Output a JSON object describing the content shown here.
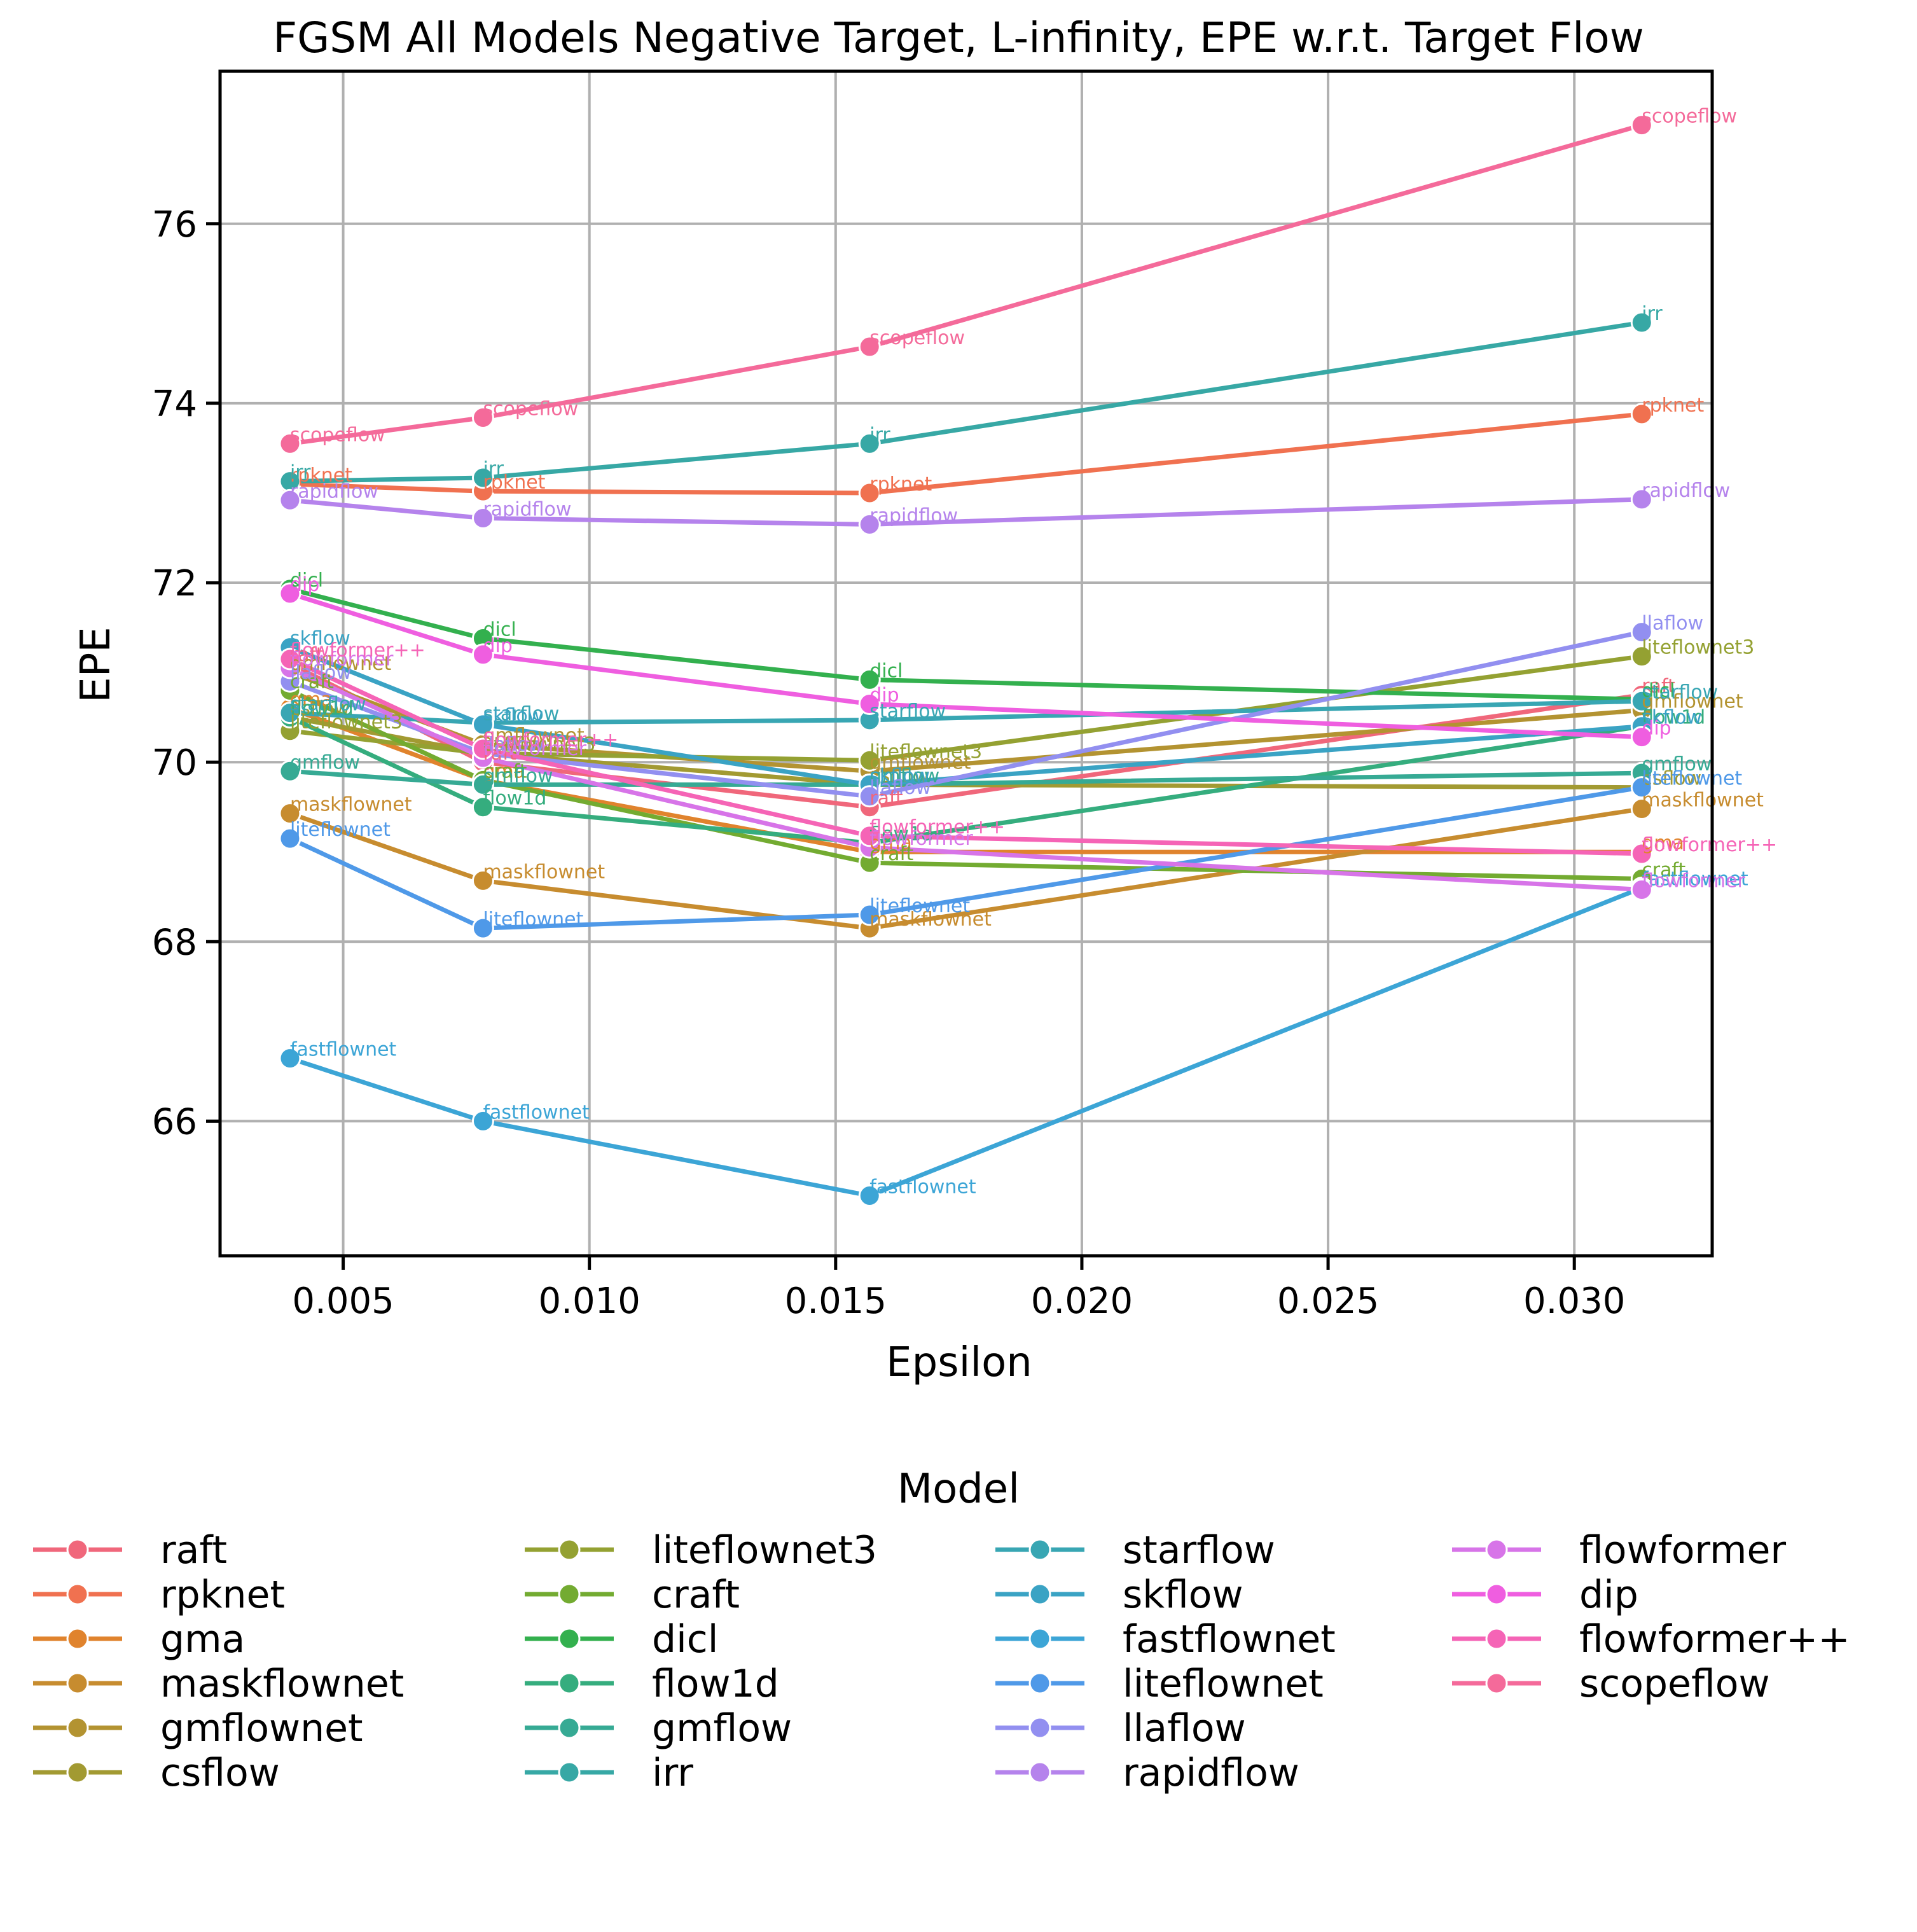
{
  "chart_data": {
    "type": "line",
    "title": "FGSM All Models Negative Target, L-infinity, EPE w.r.t. Target Flow",
    "xlabel": "Epsilon",
    "ylabel": "EPE",
    "x": [
      0.00392,
      0.00784,
      0.01569,
      0.03137
    ],
    "xlim": [
      0.0025,
      0.0328
    ],
    "ylim": [
      64.5,
      77.7
    ],
    "xticks": [
      0.005,
      0.01,
      0.015,
      0.02,
      0.025,
      0.03
    ],
    "xtick_labels": [
      "0.005",
      "0.010",
      "0.015",
      "0.020",
      "0.025",
      "0.030"
    ],
    "yticks": [
      66,
      68,
      70,
      72,
      74,
      76
    ],
    "ytick_labels": [
      "66",
      "68",
      "70",
      "72",
      "74",
      "76"
    ],
    "grid": true,
    "legend_title": "Model",
    "legend_position": "below",
    "series": [
      {
        "name": "raft",
        "color": "#f0677b",
        "values": [
          71.1,
          70.0,
          69.5,
          70.75
        ]
      },
      {
        "name": "rpknet",
        "color": "#f07150",
        "values": [
          73.1,
          73.02,
          73.0,
          73.88
        ]
      },
      {
        "name": "gma",
        "color": "#e0832d",
        "values": [
          70.6,
          69.8,
          69.0,
          69.0
        ]
      },
      {
        "name": "maskflownet",
        "color": "#c78c2f",
        "values": [
          69.43,
          68.68,
          68.15,
          69.48
        ]
      },
      {
        "name": "gmflownet",
        "color": "#b39331",
        "values": [
          71.0,
          70.2,
          69.9,
          70.58
        ]
      },
      {
        "name": "csflow",
        "color": "#a29a32",
        "values": [
          70.5,
          70.1,
          69.75,
          69.72
        ]
      },
      {
        "name": "liteflownet3",
        "color": "#94a132",
        "values": [
          70.35,
          70.1,
          70.02,
          71.18
        ]
      },
      {
        "name": "craft",
        "color": "#73ab31",
        "values": [
          70.8,
          69.8,
          68.88,
          68.7
        ]
      },
      {
        "name": "dicl",
        "color": "#33b04e",
        "values": [
          71.93,
          71.38,
          70.92,
          70.7
        ]
      },
      {
        "name": "flow1d",
        "color": "#35ad7e",
        "values": [
          70.5,
          69.5,
          69.1,
          70.4
        ]
      },
      {
        "name": "gmflow",
        "color": "#36aa94",
        "values": [
          69.9,
          69.75,
          69.75,
          69.88
        ]
      },
      {
        "name": "irr",
        "color": "#37a8a5",
        "values": [
          73.13,
          73.17,
          73.55,
          74.9
        ]
      },
      {
        "name": "starflow",
        "color": "#38a6b3",
        "values": [
          70.55,
          70.44,
          70.47,
          70.68
        ]
      },
      {
        "name": "skflow",
        "color": "#3aa3c4",
        "values": [
          71.28,
          70.42,
          69.75,
          70.4
        ]
      },
      {
        "name": "fastflownet",
        "color": "#3ca5d6",
        "values": [
          66.7,
          66.0,
          65.17,
          68.6
        ]
      },
      {
        "name": "liteflownet",
        "color": "#4f99e8",
        "values": [
          69.15,
          68.15,
          68.3,
          69.72
        ]
      },
      {
        "name": "llaflow",
        "color": "#928ff0",
        "values": [
          70.9,
          70.1,
          69.62,
          71.45
        ]
      },
      {
        "name": "rapidflow",
        "color": "#b583ec",
        "values": [
          72.92,
          72.72,
          72.65,
          72.93
        ]
      },
      {
        "name": "flowformer",
        "color": "#d774e8",
        "values": [
          71.05,
          70.05,
          69.05,
          68.58
        ]
      },
      {
        "name": "dip",
        "color": "#ef5ee0",
        "values": [
          71.88,
          71.2,
          70.65,
          70.28
        ]
      },
      {
        "name": "flowformer++",
        "color": "#f564b6",
        "values": [
          71.15,
          70.15,
          69.18,
          68.98
        ]
      },
      {
        "name": "scopeflow",
        "color": "#f46a9a",
        "values": [
          73.55,
          73.84,
          74.63,
          77.1
        ]
      }
    ]
  }
}
